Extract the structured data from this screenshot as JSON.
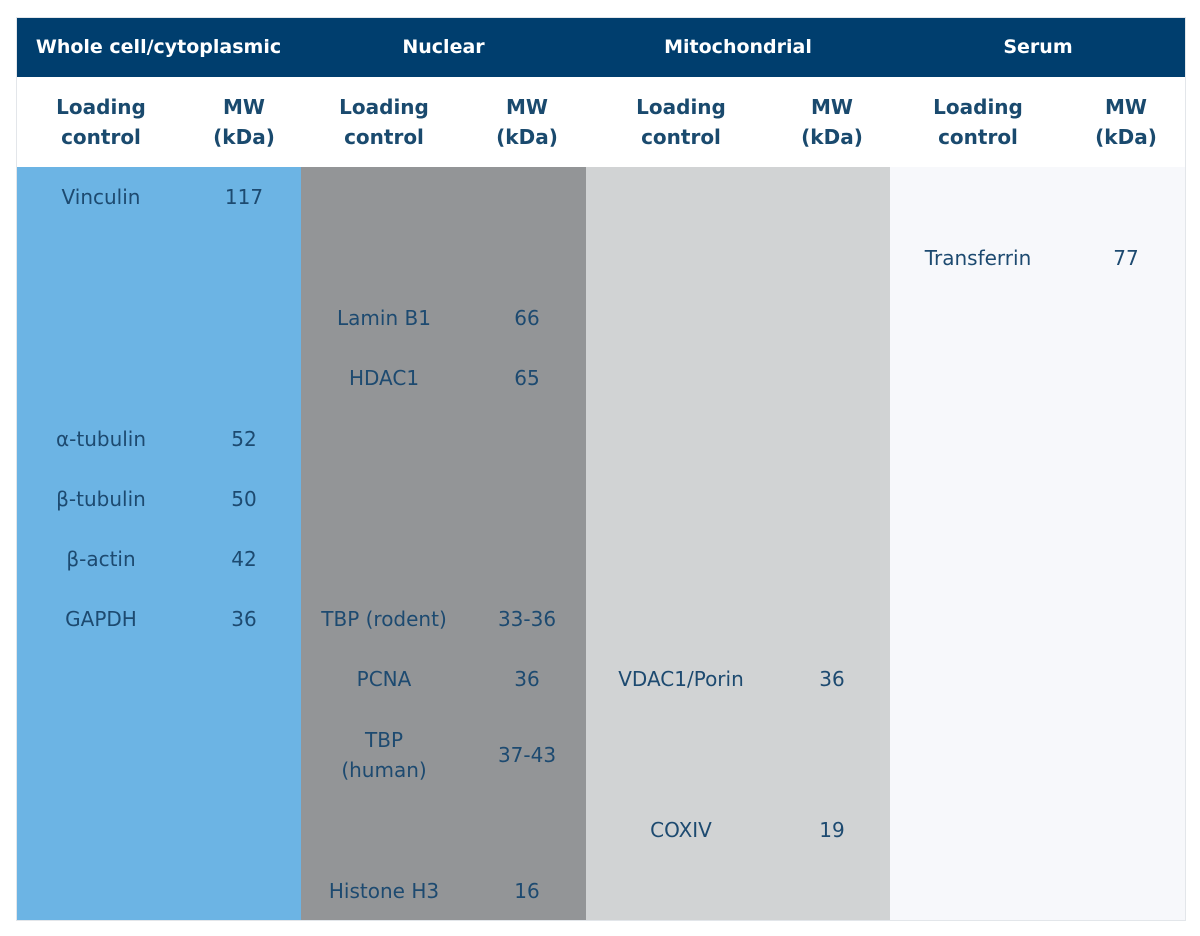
{
  "groups": {
    "whole_cell": "Whole cell/cytoplasmic",
    "nuclear": "Nuclear",
    "mitochondrial": "Mitochondrial",
    "serum": "Serum"
  },
  "subheaders": {
    "loading_control": "Loading\ncontrol",
    "mw": "MW\n(kDa)"
  },
  "colors": {
    "header_bg": "#003e6e",
    "whole_cell_bg": "#6cb4e4",
    "nuclear_bg": "#939597",
    "mitochondrial_bg": "#d1d3d4",
    "serum_bg": "#f7f8fb",
    "text": "#1d4a70"
  },
  "rows": {
    "whole_cell": [
      {
        "name": "Vinculin",
        "mw": "117"
      },
      {
        "name": "α-tubulin",
        "mw": "52"
      },
      {
        "name": "β-tubulin",
        "mw": "50"
      },
      {
        "name": "β-actin",
        "mw": "42"
      },
      {
        "name": "GAPDH",
        "mw": "36"
      }
    ],
    "nuclear": [
      {
        "name": "Lamin B1",
        "mw": "66"
      },
      {
        "name": "HDAC1",
        "mw": "65"
      },
      {
        "name": "TBP (rodent)",
        "mw": "33-36"
      },
      {
        "name": "PCNA",
        "mw": "36"
      },
      {
        "name": "TBP\n(human)",
        "mw": "37-43"
      },
      {
        "name": "Histone H3",
        "mw": "16"
      }
    ],
    "mitochondrial": [
      {
        "name": "VDAC1/Porin",
        "mw": "36"
      },
      {
        "name": "COXIV",
        "mw": "19"
      }
    ],
    "serum": [
      {
        "name": "Transferrin",
        "mw": "77"
      }
    ]
  }
}
